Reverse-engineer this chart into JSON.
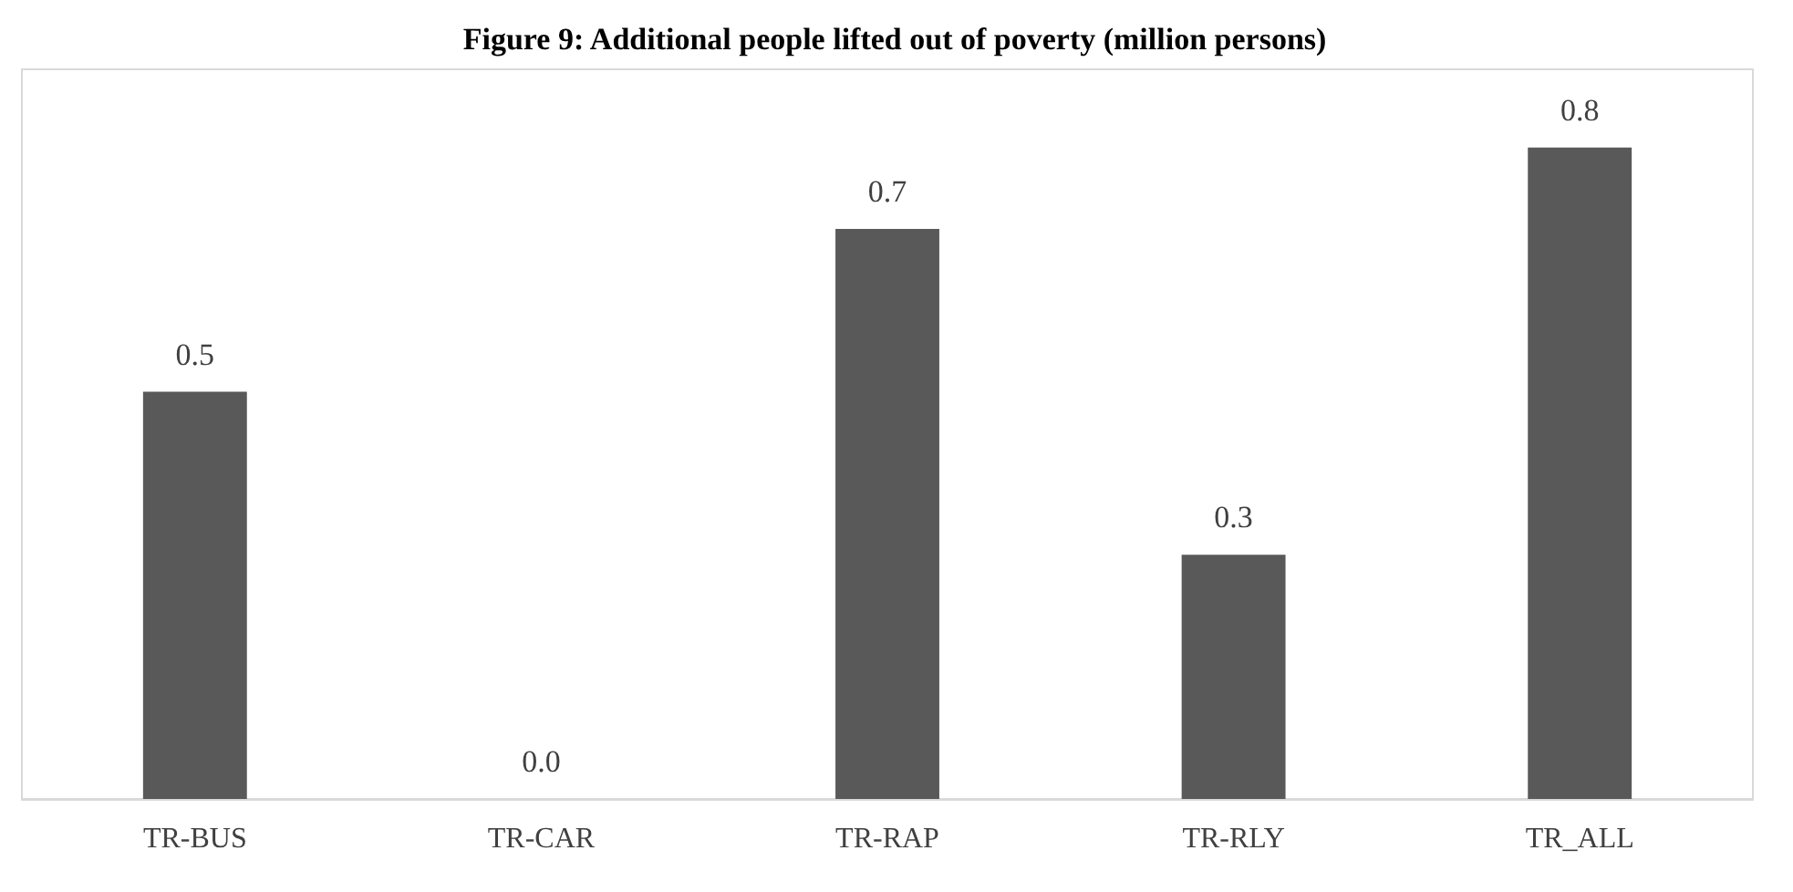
{
  "chart_data": {
    "type": "bar",
    "title": "Figure 9: Additional people lifted out of poverty (million persons)",
    "categories": [
      "TR-BUS",
      "TR-CAR",
      "TR-RAP",
      "TR-RLY",
      "TR_ALL"
    ],
    "values": [
      0.5,
      0,
      0.7,
      0.3,
      0.8
    ],
    "value_labels": [
      "0.5",
      "0.0",
      "0.7",
      "0.3",
      "0.8"
    ],
    "color": "#595959",
    "grid": false
  }
}
